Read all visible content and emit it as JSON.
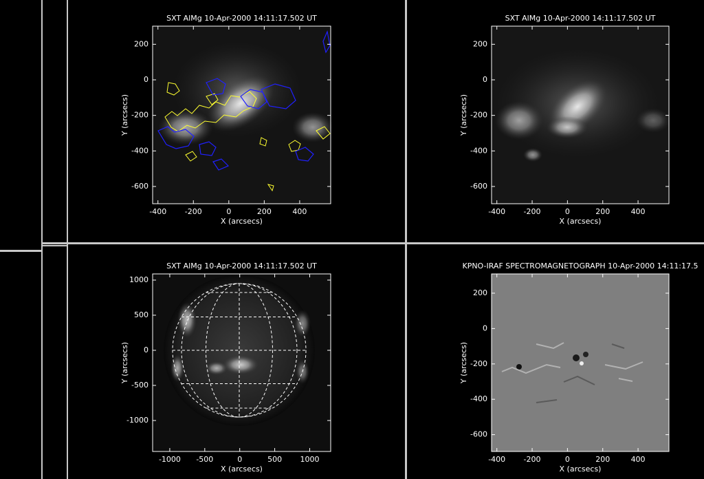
{
  "panels": [
    {
      "title": "SXT AlMg 10-Apr-2000 14:11:17.502 UT",
      "xlabel": "X (arcsecs)",
      "ylabel": "Y (arcsecs)",
      "xlim": [
        -430,
        575
      ],
      "ylim": [
        -697,
        302
      ],
      "xticks": [
        -400,
        -200,
        0,
        200,
        400
      ],
      "yticks": [
        -600,
        -400,
        -200,
        0,
        200
      ]
    },
    {
      "title": "SXT AlMg 10-Apr-2000 14:11:17.502 UT",
      "xlabel": "X (arcsecs)",
      "ylabel": "Y (arcsecs)",
      "xlim": [
        -430,
        575
      ],
      "ylim": [
        -697,
        302
      ],
      "xticks": [
        -400,
        -200,
        0,
        200,
        400
      ],
      "yticks": [
        -600,
        -400,
        -200,
        0,
        200
      ]
    },
    {
      "title": "SXT AlMg 10-Apr-2000 14:11:17.502 UT",
      "xlabel": "X (arcsecs)",
      "ylabel": "Y (arcsecs)",
      "xlim": [
        -1245,
        1300
      ],
      "ylim": [
        -1441,
        1088
      ],
      "xticks": [
        -1000,
        -500,
        0,
        500,
        1000
      ],
      "yticks": [
        -1000,
        -500,
        0,
        500,
        1000
      ]
    },
    {
      "title": "KPNO-IRAF SPECTROMAGNETOGRAPH 10-Apr-2000 14:11:17.5",
      "xlabel": "X (arcsecs)",
      "ylabel": "Y (arcsecs)",
      "xlim": [
        -430,
        575
      ],
      "ylim": [
        -695,
        309
      ],
      "xticks": [
        -400,
        -200,
        0,
        200,
        400
      ],
      "yticks": [
        -600,
        -400,
        -200,
        0,
        200
      ]
    }
  ]
}
